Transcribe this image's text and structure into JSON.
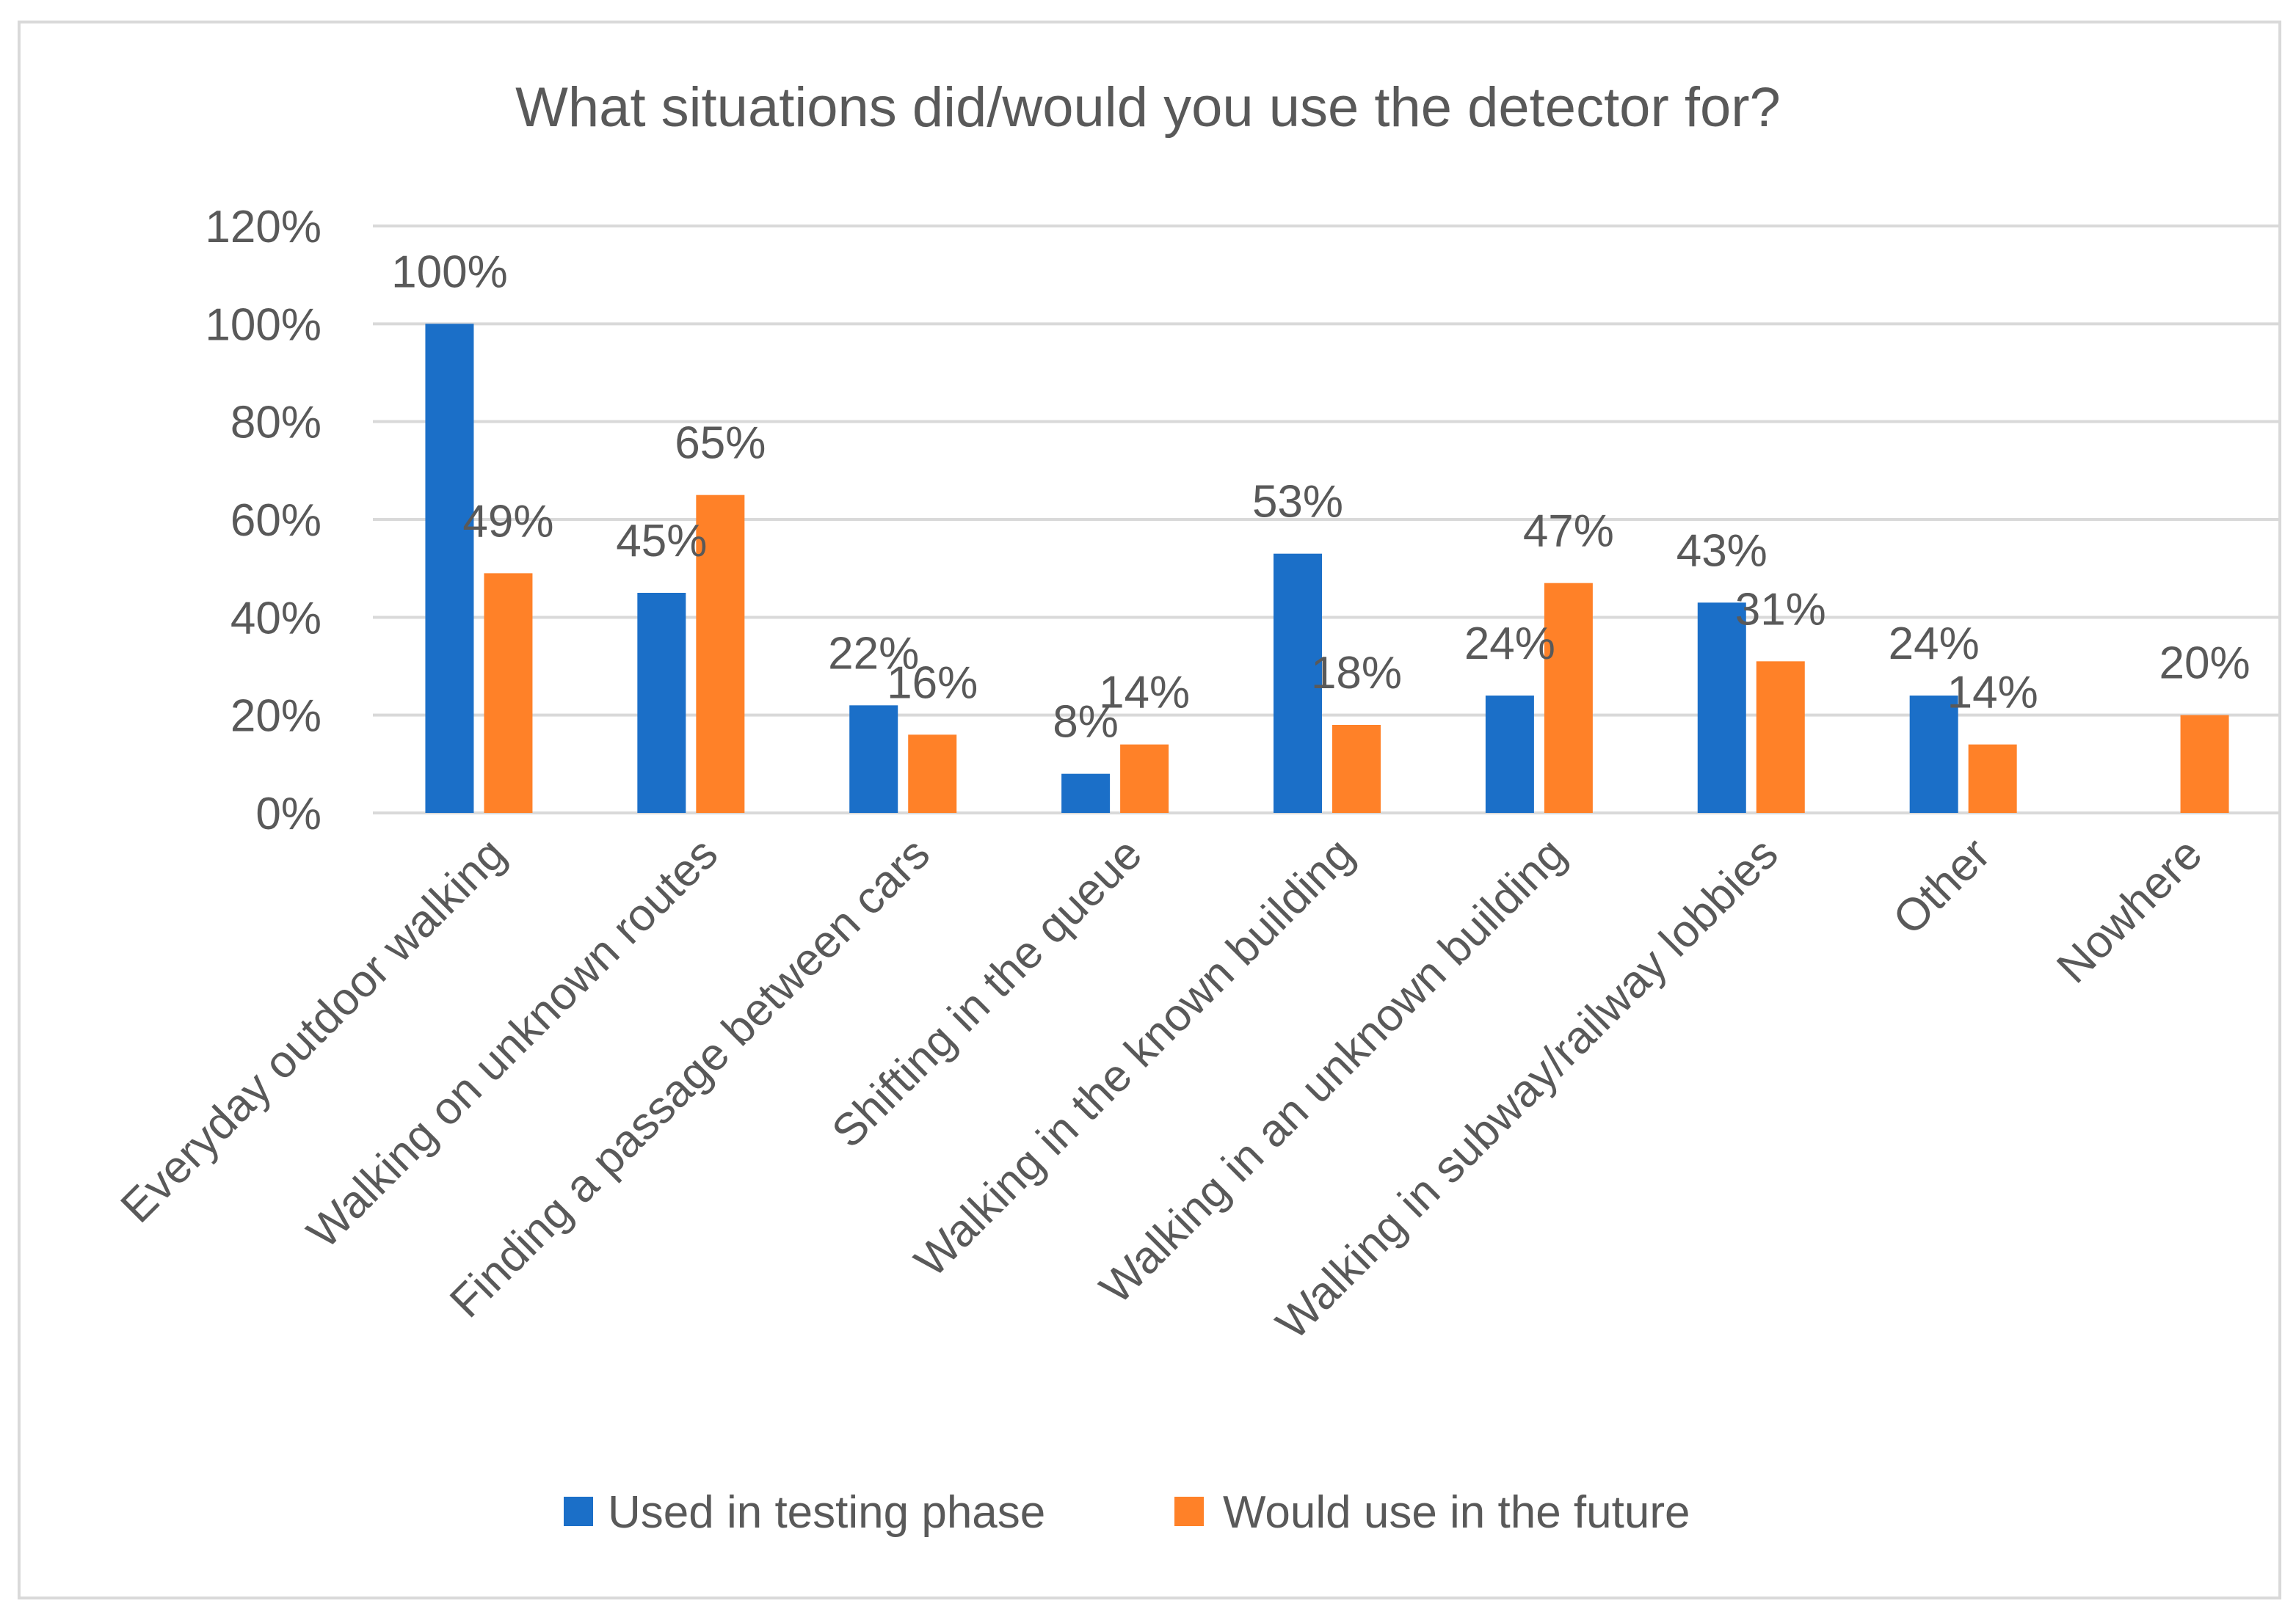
{
  "chart_data": {
    "type": "bar",
    "title": "What situations did/would you use the detector for?",
    "xlabel": "",
    "ylabel": "",
    "ylim": [
      0,
      120
    ],
    "y_ticks": [
      "0%",
      "20%",
      "40%",
      "60%",
      "80%",
      "100%",
      "120%"
    ],
    "y_tick_values": [
      0,
      20,
      40,
      60,
      80,
      100,
      120
    ],
    "grid": true,
    "legend_position": "bottom",
    "categories": [
      "Everyday outdoor walking",
      "Walking on unknown routes",
      "Finding a passage between cars",
      "Shifting in the queue",
      "Walking in the known building",
      "Walking in an unknown building",
      "Walking in subway/railway lobbies",
      "Other",
      "Nowhere"
    ],
    "series": [
      {
        "name": "Used in testing phase",
        "color": "#1b6fc8",
        "values": [
          100,
          45,
          22,
          8,
          53,
          24,
          43,
          24,
          null
        ],
        "labels": [
          "100%",
          "45%",
          "22%",
          "8%",
          "53%",
          "24%",
          "43%",
          "24%",
          ""
        ]
      },
      {
        "name": "Would use in the future",
        "color": "#ff8128",
        "values": [
          49,
          65,
          16,
          14,
          18,
          47,
          31,
          14,
          20
        ],
        "labels": [
          "49%",
          "65%",
          "16%",
          "14%",
          "18%",
          "47%",
          "31%",
          "14%",
          "20%"
        ]
      }
    ]
  }
}
